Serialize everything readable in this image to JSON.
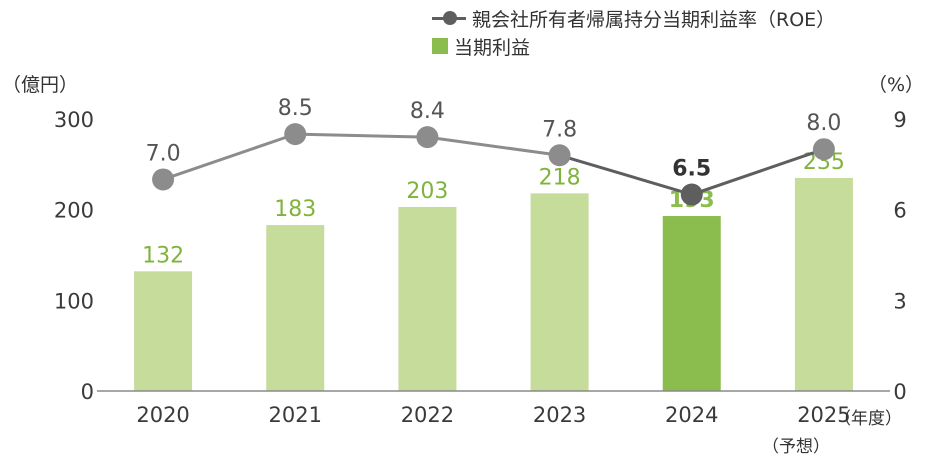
{
  "chart_data": {
    "type": "bar+line",
    "categories": [
      "2020",
      "2021",
      "2022",
      "2023",
      "2024",
      "2025"
    ],
    "category_note": "（予想）",
    "x_unit": "（年度）",
    "highlight_category": "2024",
    "series": [
      {
        "name": "当期利益",
        "kind": "bar",
        "axis": "left",
        "values": [
          132,
          183,
          203,
          218,
          193,
          235
        ],
        "labels": [
          "132",
          "183",
          "203",
          "218",
          "193",
          "235"
        ],
        "color": "#c5dc9b",
        "highlight_color": "#8bbd4e",
        "label_color": "#7fb33e"
      },
      {
        "name": "親会社所有者帰属持分当期利益率（ROE）",
        "kind": "line",
        "axis": "right",
        "values": [
          7.0,
          8.5,
          8.4,
          7.8,
          6.5,
          8.0
        ],
        "labels": [
          "7.0",
          "8.5",
          "8.4",
          "7.8",
          "6.5",
          "8.0"
        ],
        "color": "#8c8c8c",
        "highlight_color": "#5e5e5e"
      }
    ],
    "y_left": {
      "label": "（億円）",
      "ticks": [
        "0",
        "100",
        "200",
        "300"
      ],
      "range": [
        0,
        300
      ]
    },
    "y_right": {
      "label": "（%）",
      "ticks": [
        "0",
        "3",
        "6",
        "9"
      ],
      "range": [
        0,
        9
      ]
    },
    "grid": false,
    "legend": "top-right"
  }
}
